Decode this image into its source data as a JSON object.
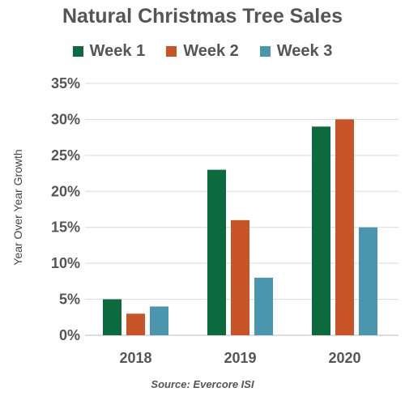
{
  "chart_data": {
    "type": "bar",
    "title": "Natural Christmas Tree Sales",
    "ylabel": "Year Over Year Growth",
    "source": "Source: Evercore ISI",
    "categories": [
      "2018",
      "2019",
      "2020"
    ],
    "series": [
      {
        "name": "Week 1",
        "color": "#0b6b3f",
        "values": [
          5,
          23,
          29
        ]
      },
      {
        "name": "Week 2",
        "color": "#c95428",
        "values": [
          3,
          16,
          30
        ]
      },
      {
        "name": "Week 3",
        "color": "#4a97ad",
        "values": [
          4,
          8,
          15
        ]
      }
    ],
    "yticks": [
      "0%",
      "5%",
      "10%",
      "15%",
      "20%",
      "25%",
      "30%",
      "35%"
    ],
    "ylim": [
      0,
      35
    ],
    "grid": true,
    "legend": "top"
  }
}
